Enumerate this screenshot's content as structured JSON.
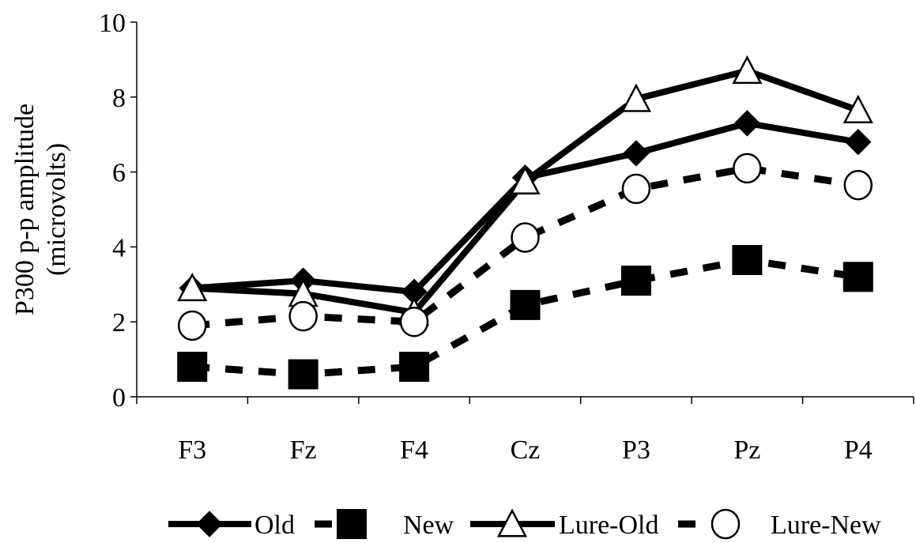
{
  "chart_data": {
    "type": "line",
    "categories": [
      "F3",
      "Fz",
      "F4",
      "Cz",
      "P3",
      "Pz",
      "P4"
    ],
    "ylabel_lines": [
      "P300 p-p amplitude",
      "(microvolts)"
    ],
    "ylim": [
      0,
      10
    ],
    "yticks": [
      0,
      2,
      4,
      6,
      8,
      10
    ],
    "grid": false,
    "legend_position": "bottom",
    "series": [
      {
        "name": "Old",
        "marker": "diamond",
        "line": "solid",
        "color": "#000000",
        "values": [
          2.9,
          3.1,
          2.8,
          5.85,
          6.5,
          7.3,
          6.8
        ]
      },
      {
        "name": "New",
        "marker": "square",
        "line": "dashed",
        "color": "#000000",
        "values": [
          0.8,
          0.6,
          0.8,
          2.45,
          3.1,
          3.65,
          3.2
        ]
      },
      {
        "name": "Lure-Old",
        "marker": "triangle",
        "line": "solid",
        "color": "#000000",
        "values": [
          2.9,
          2.75,
          2.25,
          5.75,
          7.95,
          8.7,
          7.65
        ]
      },
      {
        "name": "Lure-New",
        "marker": "circle",
        "line": "dashed",
        "color": "#000000",
        "values": [
          1.9,
          2.15,
          2.0,
          4.25,
          5.55,
          6.1,
          5.65
        ]
      }
    ]
  }
}
